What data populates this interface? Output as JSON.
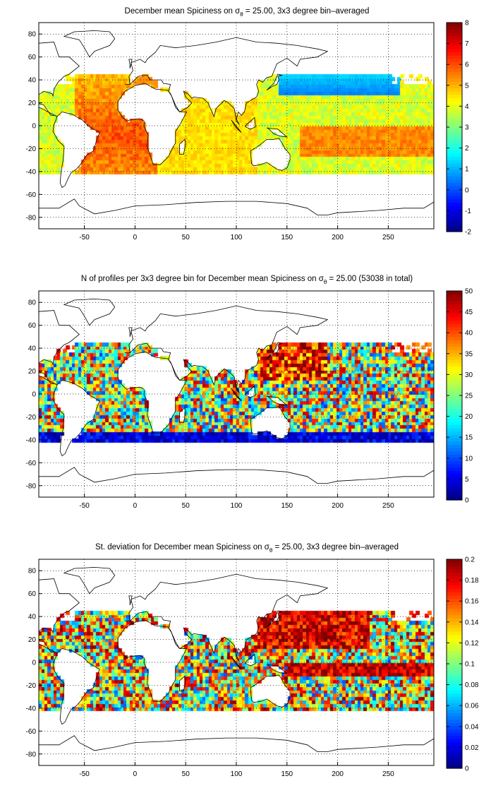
{
  "chart_data": [
    {
      "type": "heatmap",
      "title_pre": "December mean Spiciness on ",
      "title_sym": "σ",
      "title_sub": "θ",
      "title_post": " = 25.00, 3x3 degree bin–averaged",
      "xlim": [
        -95,
        295
      ],
      "ylim": [
        -90,
        90
      ],
      "xticks": [
        "-50",
        "0",
        "50",
        "100",
        "150",
        "200",
        "250"
      ],
      "xtick_values": [
        -50,
        0,
        50,
        100,
        150,
        200,
        250
      ],
      "yticks": [
        "80",
        "60",
        "40",
        "20",
        "0",
        "-20",
        "-40",
        "-60",
        "-80"
      ],
      "ytick_values": [
        80,
        60,
        40,
        20,
        0,
        -20,
        -40,
        -60,
        -80
      ],
      "colorbar": {
        "min": -2,
        "max": 8,
        "ticks": [
          "8",
          "7",
          "6",
          "5",
          "4",
          "3",
          "2",
          "1",
          "0",
          "-1",
          "-2"
        ],
        "tick_values": [
          8,
          7,
          6,
          5,
          4,
          3,
          2,
          1,
          0,
          -1,
          -2
        ]
      },
      "field": "mean",
      "grid": true
    },
    {
      "type": "heatmap",
      "title_pre": "N of profiles per 3x3 degree bin for December mean Spiciness on ",
      "title_sym": "σ",
      "title_sub": "θ",
      "title_post": " = 25.00 (53038 in total)",
      "xlim": [
        -95,
        295
      ],
      "ylim": [
        -90,
        90
      ],
      "xticks": [
        "-50",
        "0",
        "50",
        "100",
        "150",
        "200",
        "250"
      ],
      "xtick_values": [
        -50,
        0,
        50,
        100,
        150,
        200,
        250
      ],
      "yticks": [
        "80",
        "60",
        "40",
        "20",
        "0",
        "-20",
        "-40",
        "-60",
        "-80"
      ],
      "ytick_values": [
        80,
        60,
        40,
        20,
        0,
        -20,
        -40,
        -60,
        -80
      ],
      "colorbar": {
        "min": 0,
        "max": 50,
        "ticks": [
          "50",
          "45",
          "40",
          "35",
          "30",
          "25",
          "20",
          "15",
          "10",
          "5",
          "0"
        ],
        "tick_values": [
          50,
          45,
          40,
          35,
          30,
          25,
          20,
          15,
          10,
          5,
          0
        ]
      },
      "field": "count",
      "grid": true
    },
    {
      "type": "heatmap",
      "title_pre": "St. deviation for December mean Spiciness on ",
      "title_sym": "σ",
      "title_sub": "θ",
      "title_post": " = 25.00, 3x3 degree bin–averaged",
      "xlim": [
        -95,
        295
      ],
      "ylim": [
        -90,
        90
      ],
      "xticks": [
        "-50",
        "0",
        "50",
        "100",
        "150",
        "200",
        "250"
      ],
      "xtick_values": [
        -50,
        0,
        50,
        100,
        150,
        200,
        250
      ],
      "yticks": [
        "80",
        "60",
        "40",
        "20",
        "0",
        "-20",
        "-40",
        "-60",
        "-80"
      ],
      "ytick_values": [
        80,
        60,
        40,
        20,
        0,
        -20,
        -40,
        -60,
        -80
      ],
      "colorbar": {
        "min": 0,
        "max": 0.2,
        "ticks": [
          "0.2",
          "0.18",
          "0.16",
          "0.14",
          "0.12",
          "0.1",
          "0.08",
          "0.06",
          "0.04",
          "0.02",
          "0"
        ],
        "tick_values": [
          0.2,
          0.18,
          0.16,
          0.14,
          0.12,
          0.1,
          0.08,
          0.06,
          0.04,
          0.02,
          0
        ]
      },
      "field": "std",
      "grid": true
    }
  ]
}
